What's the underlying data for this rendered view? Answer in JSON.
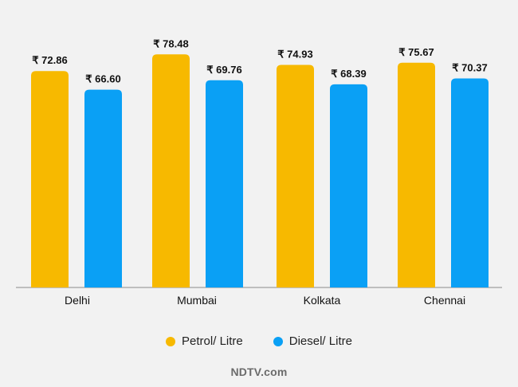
{
  "chart_data": {
    "type": "bar",
    "categories": [
      "Delhi",
      "Mumbai",
      "Kolkata",
      "Chennai"
    ],
    "series": [
      {
        "name": "Petrol/ Litre",
        "color": "#f7b900",
        "values": [
          72.86,
          78.48,
          74.93,
          75.67
        ]
      },
      {
        "name": "Diesel/ Litre",
        "color": "#0aa0f5",
        "values": [
          66.6,
          69.76,
          68.39,
          70.37
        ]
      }
    ],
    "value_prefix": "₹",
    "title": "",
    "xlabel": "",
    "ylabel": "",
    "ylim": [
      0,
      80
    ],
    "grid": false,
    "legend_position": "bottom"
  },
  "legend": {
    "petrol_label": "Petrol/ Litre",
    "diesel_label": "Diesel/ Litre"
  },
  "brand": {
    "text": "NDTV.com"
  }
}
